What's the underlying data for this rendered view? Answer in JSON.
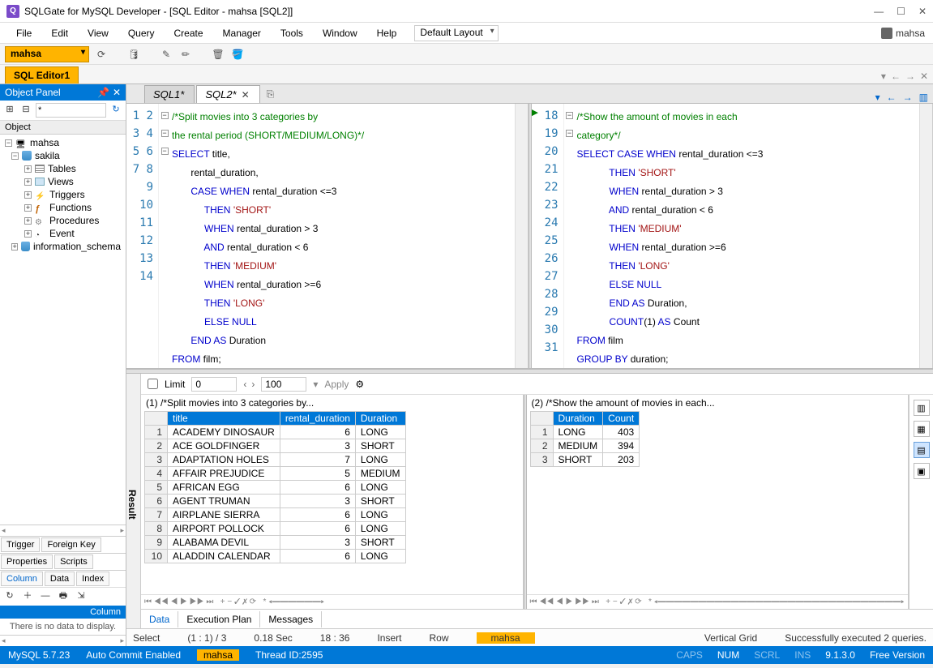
{
  "title": "SQLGate for MySQL Developer - [SQL Editor - mahsa [SQL2]]",
  "user": "mahsa",
  "menus": [
    "File",
    "Edit",
    "View",
    "Query",
    "Create",
    "Manager",
    "Tools",
    "Window",
    "Help"
  ],
  "layout_combo": "Default Layout",
  "db_combo": "mahsa",
  "doc_tab": "SQL Editor1",
  "object_panel": {
    "title": "Object Panel",
    "filter": "*",
    "header": "Object",
    "tree": [
      {
        "lvl": 0,
        "exp": "−",
        "icon": "server",
        "label": "mahsa"
      },
      {
        "lvl": 1,
        "exp": "−",
        "icon": "db",
        "label": "sakila"
      },
      {
        "lvl": 2,
        "exp": "+",
        "icon": "table",
        "label": "Tables"
      },
      {
        "lvl": 2,
        "exp": "+",
        "icon": "views",
        "label": "Views"
      },
      {
        "lvl": 2,
        "exp": "+",
        "icon": "trig",
        "label": "Triggers"
      },
      {
        "lvl": 2,
        "exp": "+",
        "icon": "func",
        "label": "Functions"
      },
      {
        "lvl": 2,
        "exp": "+",
        "icon": "proc",
        "label": "Procedures"
      },
      {
        "lvl": 2,
        "exp": "+",
        "icon": "event",
        "label": "Event"
      },
      {
        "lvl": 1,
        "exp": "+",
        "icon": "db",
        "label": "information_schema"
      }
    ],
    "prop_tabs_row1": [
      "Trigger",
      "Foreign Key"
    ],
    "prop_tabs_row2": [
      "Properties",
      "Scripts"
    ],
    "prop_tabs_row3": [
      "Column",
      "Data",
      "Index"
    ],
    "grid_header": "Column",
    "no_data": "There is no data to display."
  },
  "editor_tabs": [
    {
      "label": "SQL1*",
      "active": false
    },
    {
      "label": "SQL2*",
      "active": true
    }
  ],
  "pane1": {
    "start": 1,
    "lines": [
      [
        {
          "t": "cm",
          "v": "/*Split movies into 3 categories by"
        }
      ],
      [
        {
          "t": "cm",
          "v": "the rental period (SHORT/MEDIUM/LONG)*/"
        }
      ],
      [
        {
          "t": "kw",
          "v": "SELECT"
        },
        {
          "t": "ident",
          "v": " title,"
        }
      ],
      [
        {
          "t": "ident",
          "v": "       rental_duration,"
        }
      ],
      [
        {
          "t": "ident",
          "v": "       "
        },
        {
          "t": "kw",
          "v": "CASE WHEN"
        },
        {
          "t": "ident",
          "v": " rental_duration <="
        },
        {
          "t": "num",
          "v": "3"
        }
      ],
      [
        {
          "t": "ident",
          "v": "            "
        },
        {
          "t": "kw",
          "v": "THEN"
        },
        {
          "t": "ident",
          "v": " "
        },
        {
          "t": "str",
          "v": "'SHORT'"
        }
      ],
      [
        {
          "t": "ident",
          "v": "            "
        },
        {
          "t": "kw",
          "v": "WHEN"
        },
        {
          "t": "ident",
          "v": " rental_duration > "
        },
        {
          "t": "num",
          "v": "3"
        }
      ],
      [
        {
          "t": "ident",
          "v": "            "
        },
        {
          "t": "kw",
          "v": "AND"
        },
        {
          "t": "ident",
          "v": " rental_duration < "
        },
        {
          "t": "num",
          "v": "6"
        }
      ],
      [
        {
          "t": "ident",
          "v": "            "
        },
        {
          "t": "kw",
          "v": "THEN"
        },
        {
          "t": "ident",
          "v": " "
        },
        {
          "t": "str",
          "v": "'MEDIUM'"
        }
      ],
      [
        {
          "t": "ident",
          "v": "            "
        },
        {
          "t": "kw",
          "v": "WHEN"
        },
        {
          "t": "ident",
          "v": " rental_duration >="
        },
        {
          "t": "num",
          "v": "6"
        }
      ],
      [
        {
          "t": "ident",
          "v": "            "
        },
        {
          "t": "kw",
          "v": "THEN"
        },
        {
          "t": "ident",
          "v": " "
        },
        {
          "t": "str",
          "v": "'LONG'"
        }
      ],
      [
        {
          "t": "ident",
          "v": "            "
        },
        {
          "t": "kw",
          "v": "ELSE NULL"
        }
      ],
      [
        {
          "t": "ident",
          "v": "       "
        },
        {
          "t": "kw",
          "v": "END AS"
        },
        {
          "t": "ident",
          "v": " Duration"
        }
      ],
      [
        {
          "t": "kw",
          "v": "FROM"
        },
        {
          "t": "ident",
          "v": " film;"
        }
      ]
    ],
    "fold": {
      "0": "−",
      "2": "−",
      "4": "−"
    }
  },
  "pane2": {
    "start": 18,
    "lines": [
      [
        {
          "t": "cm",
          "v": "/*Show the amount of movies in each"
        }
      ],
      [
        {
          "t": "cm",
          "v": "category*/"
        }
      ],
      [
        {
          "t": "kw",
          "v": "SELECT CASE WHEN"
        },
        {
          "t": "ident",
          "v": " rental_duration <="
        },
        {
          "t": "num",
          "v": "3"
        }
      ],
      [
        {
          "t": "ident",
          "v": "            "
        },
        {
          "t": "kw",
          "v": "THEN"
        },
        {
          "t": "ident",
          "v": " "
        },
        {
          "t": "str",
          "v": "'SHORT'"
        }
      ],
      [
        {
          "t": "ident",
          "v": "            "
        },
        {
          "t": "kw",
          "v": "WHEN"
        },
        {
          "t": "ident",
          "v": " rental_duration > "
        },
        {
          "t": "num",
          "v": "3"
        }
      ],
      [
        {
          "t": "ident",
          "v": "            "
        },
        {
          "t": "kw",
          "v": "AND"
        },
        {
          "t": "ident",
          "v": " rental_duration < "
        },
        {
          "t": "num",
          "v": "6"
        }
      ],
      [
        {
          "t": "ident",
          "v": "            "
        },
        {
          "t": "kw",
          "v": "THEN"
        },
        {
          "t": "ident",
          "v": " "
        },
        {
          "t": "str",
          "v": "'MEDIUM'"
        }
      ],
      [
        {
          "t": "ident",
          "v": "            "
        },
        {
          "t": "kw",
          "v": "WHEN"
        },
        {
          "t": "ident",
          "v": " rental_duration >="
        },
        {
          "t": "num",
          "v": "6"
        }
      ],
      [
        {
          "t": "ident",
          "v": "            "
        },
        {
          "t": "kw",
          "v": "THEN"
        },
        {
          "t": "ident",
          "v": " "
        },
        {
          "t": "str",
          "v": "'LONG'"
        }
      ],
      [
        {
          "t": "ident",
          "v": "            "
        },
        {
          "t": "kw",
          "v": "ELSE NULL"
        }
      ],
      [
        {
          "t": "ident",
          "v": "            "
        },
        {
          "t": "kw",
          "v": "END AS"
        },
        {
          "t": "ident",
          "v": " Duration,"
        }
      ],
      [
        {
          "t": "ident",
          "v": "            "
        },
        {
          "t": "fn",
          "v": "COUNT"
        },
        {
          "t": "ident",
          "v": "("
        },
        {
          "t": "num",
          "v": "1"
        },
        {
          "t": "ident",
          "v": ") "
        },
        {
          "t": "kw",
          "v": "AS"
        },
        {
          "t": "ident",
          "v": " Count"
        }
      ],
      [
        {
          "t": "kw",
          "v": "FROM"
        },
        {
          "t": "ident",
          "v": " film"
        }
      ],
      [
        {
          "t": "kw",
          "v": "GROUP BY"
        },
        {
          "t": "ident",
          "v": " duration;"
        }
      ]
    ],
    "fold": {
      "0": "−",
      "2": "−"
    }
  },
  "results": {
    "label": "Result",
    "limit_label": "Limit",
    "limit_from": "0",
    "limit_to": "100",
    "apply": "Apply",
    "pane1": {
      "title": "(1) /*Split movies into 3 categories by...",
      "columns": [
        "title",
        "rental_duration",
        "Duration"
      ],
      "rows": [
        [
          "ACADEMY DINOSAUR",
          "6",
          "LONG"
        ],
        [
          "ACE GOLDFINGER",
          "3",
          "SHORT"
        ],
        [
          "ADAPTATION HOLES",
          "7",
          "LONG"
        ],
        [
          "AFFAIR PREJUDICE",
          "5",
          "MEDIUM"
        ],
        [
          "AFRICAN EGG",
          "6",
          "LONG"
        ],
        [
          "AGENT TRUMAN",
          "3",
          "SHORT"
        ],
        [
          "AIRPLANE SIERRA",
          "6",
          "LONG"
        ],
        [
          "AIRPORT POLLOCK",
          "6",
          "LONG"
        ],
        [
          "ALABAMA DEVIL",
          "3",
          "SHORT"
        ],
        [
          "ALADDIN CALENDAR",
          "6",
          "LONG"
        ]
      ]
    },
    "pane2": {
      "title": "(2) /*Show the amount of movies in each...",
      "columns": [
        "Duration",
        "Count"
      ],
      "rows": [
        [
          "LONG",
          "403"
        ],
        [
          "MEDIUM",
          "394"
        ],
        [
          "SHORT",
          "203"
        ]
      ]
    },
    "tabs": [
      "Data",
      "Execution Plan",
      "Messages"
    ]
  },
  "status1": {
    "mode": "Select",
    "pos": "(1 : 1) / 3",
    "time": "0.18 Sec",
    "clock": "18 : 36",
    "ins": "Insert",
    "row": "Row",
    "db": "mahsa",
    "grid": "Vertical Grid",
    "msg": "Successfully executed 2 queries."
  },
  "status2": {
    "ver": "MySQL 5.7.23",
    "ac": "Auto Commit Enabled",
    "db": "mahsa",
    "thr": "Thread ID:2595",
    "caps": "CAPS",
    "num": "NUM",
    "scrl": "SCRL",
    "ins": "INS",
    "app": "9.1.3.0",
    "lic": "Free Version"
  }
}
